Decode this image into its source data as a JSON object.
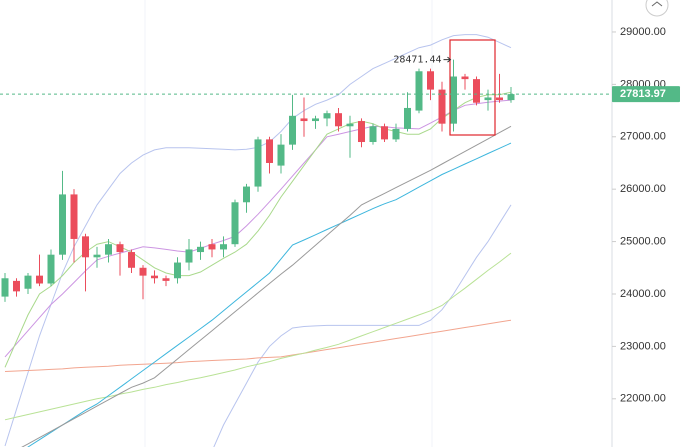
{
  "chart_data": {
    "type": "candlestick",
    "open": [
      23950,
      24250,
      24100,
      24350,
      24200,
      24750,
      25900,
      25100,
      24700,
      24750,
      24950,
      24800,
      24500,
      24350,
      24300,
      24300,
      24600,
      24800,
      24950,
      24850,
      24950,
      25750,
      26050,
      26950,
      26450,
      26850,
      27350,
      27300,
      27350,
      27450,
      27200,
      27300,
      26900,
      27200,
      26950,
      27150,
      27500,
      28250,
      27900,
      27250,
      28150,
      28100,
      27700,
      27750,
      27700
    ],
    "high": [
      24400,
      24300,
      24400,
      24750,
      24850,
      26350,
      26000,
      25150,
      24900,
      25050,
      25000,
      24850,
      24550,
      24450,
      24350,
      24700,
      25050,
      25000,
      25050,
      25100,
      25800,
      26100,
      27000,
      27000,
      27050,
      27800,
      27750,
      27400,
      27500,
      27550,
      27400,
      27350,
      27250,
      27250,
      27250,
      27850,
      28300,
      28300,
      28050,
      28471.44,
      28200,
      28150,
      27900,
      28200,
      27950
    ],
    "low": [
      23850,
      23950,
      24000,
      24150,
      24150,
      24650,
      24600,
      24050,
      24500,
      24600,
      24350,
      24400,
      23900,
      24200,
      24150,
      24200,
      24450,
      24650,
      24700,
      24700,
      24900,
      25550,
      25950,
      26300,
      26300,
      26750,
      27000,
      27150,
      27200,
      27100,
      26600,
      26800,
      26850,
      26900,
      26900,
      27100,
      27450,
      27700,
      27100,
      27100,
      27900,
      27600,
      27500,
      27650,
      27650
    ],
    "close": [
      24300,
      24050,
      24350,
      24200,
      24750,
      25900,
      25050,
      24700,
      24750,
      24950,
      24800,
      24500,
      24350,
      24300,
      24250,
      24600,
      24850,
      24900,
      24850,
      24950,
      25750,
      26050,
      26950,
      26500,
      26850,
      27400,
      27300,
      27350,
      27450,
      27200,
      27250,
      26900,
      27200,
      26950,
      27150,
      27550,
      28250,
      27900,
      27250,
      28150,
      28100,
      27650,
      27750,
      27700,
      27813.97
    ],
    "up_color": "#53b987",
    "down_color": "#eb4d5c",
    "series": [
      {
        "color": "#b8c4ee",
        "values": [
          21100,
          21800,
          22500,
          23200,
          23800,
          24400,
          24900,
          25300,
          25700,
          26000,
          26300,
          26500,
          26650,
          26750,
          26790,
          26790,
          26790,
          26780,
          26770,
          26760,
          26750,
          26760,
          26800,
          26900,
          27100,
          27350,
          27500,
          27620,
          27700,
          27800,
          28000,
          28150,
          28300,
          28400,
          28500,
          28600,
          28700,
          28750,
          28850,
          28930,
          28950,
          28950,
          28900,
          28800,
          28700
        ]
      },
      {
        "color": "#b8c4ee",
        "values": [
          null,
          null,
          null,
          null,
          null,
          null,
          null,
          null,
          null,
          null,
          null,
          null,
          null,
          null,
          null,
          null,
          null,
          null,
          21000,
          21500,
          21900,
          22300,
          22700,
          23000,
          23200,
          23350,
          23380,
          23390,
          23400,
          23400,
          23400,
          23400,
          23400,
          23400,
          23400,
          23400,
          23400,
          23500,
          23700,
          24000,
          24350,
          24700,
          25000,
          25350,
          25700
        ]
      },
      {
        "color": "#f2a58f",
        "values": [
          22520,
          22530,
          22540,
          22550,
          22560,
          22570,
          22590,
          22600,
          22610,
          22620,
          22640,
          22650,
          22660,
          22670,
          22680,
          22690,
          22710,
          22720,
          22730,
          22740,
          22750,
          22760,
          22780,
          22790,
          22800,
          22835,
          22870,
          22905,
          22940,
          22975,
          23010,
          23045,
          23080,
          23115,
          23150,
          23185,
          23220,
          23255,
          23290,
          23325,
          23360,
          23395,
          23430,
          23465,
          23500
        ]
      },
      {
        "color": "#b9e296",
        "values": [
          21600,
          21650,
          21700,
          21750,
          21800,
          21850,
          21900,
          21950,
          22000,
          22040,
          22090,
          22130,
          22180,
          22220,
          22270,
          22310,
          22360,
          22400,
          22450,
          22500,
          22550,
          22610,
          22660,
          22710,
          22770,
          22820,
          22870,
          22930,
          22980,
          23040,
          23120,
          23200,
          23280,
          23360,
          23440,
          23520,
          23600,
          23680,
          23780,
          23950,
          24110,
          24280,
          24450,
          24610,
          24780
        ]
      },
      {
        "color": "#3db6dd",
        "values": [
          20800,
          20940,
          21080,
          21220,
          21360,
          21500,
          21640,
          21780,
          21900,
          22060,
          22220,
          22380,
          22540,
          22700,
          22860,
          23020,
          23180,
          23340,
          23500,
          23680,
          23860,
          24040,
          24220,
          24400,
          24670,
          24935,
          25030,
          25130,
          25230,
          25330,
          25430,
          25530,
          25630,
          25720,
          25800,
          25920,
          26040,
          26160,
          26280,
          26380,
          26480,
          26580,
          26680,
          26780,
          26880
        ]
      },
      {
        "color": "#9a9a9a",
        "values": [
          20900,
          21020,
          21140,
          21260,
          21380,
          21500,
          21620,
          21740,
          21860,
          21980,
          22100,
          22220,
          22300,
          22400,
          22580,
          22760,
          22940,
          23120,
          23300,
          23480,
          23660,
          23840,
          24020,
          24200,
          24380,
          24550,
          24740,
          24930,
          25120,
          25310,
          25500,
          25700,
          25810,
          25920,
          26030,
          26140,
          26250,
          26360,
          26480,
          26600,
          26720,
          26840,
          26960,
          27080,
          27200
        ]
      },
      {
        "color": "#cc95e2",
        "values": [
          22800,
          23050,
          23300,
          23550,
          23800,
          24000,
          24220,
          24440,
          24650,
          24720,
          24780,
          24840,
          24900,
          24880,
          24850,
          24820,
          24800,
          24870,
          24950,
          25020,
          25100,
          25300,
          25520,
          25760,
          26000,
          26250,
          26500,
          26750,
          27000,
          27050,
          27100,
          27150,
          27200,
          27190,
          27170,
          27160,
          27150,
          27260,
          27380,
          27500,
          27600,
          27630,
          27660,
          27680,
          27700
        ]
      },
      {
        "color": "#a9d98c",
        "values": [
          22600,
          23100,
          23600,
          24000,
          24150,
          24350,
          24600,
          24800,
          24950,
          25000,
          24900,
          24800,
          24650,
          24500,
          24400,
          24350,
          24350,
          24420,
          24550,
          24680,
          24800,
          24950,
          25200,
          25500,
          25850,
          26150,
          26450,
          26750,
          27050,
          27150,
          27250,
          27300,
          27250,
          27150,
          27100,
          27050,
          27050,
          27150,
          27350,
          27500,
          27650,
          27750,
          27800,
          27800,
          27850
        ]
      }
    ],
    "ylim": [
      21080,
      29610
    ],
    "yticks": [
      {
        "value": 22000,
        "label": "22000.00"
      },
      {
        "value": 23000,
        "label": "23000.00"
      },
      {
        "value": 24000,
        "label": "24000.00"
      },
      {
        "value": 25000,
        "label": "25000.00"
      },
      {
        "value": 26000,
        "label": "26000.00"
      },
      {
        "value": 27000,
        "label": "27000.00"
      },
      {
        "value": 28000,
        "label": "28000.00"
      },
      {
        "value": 29000,
        "label": "29000.00"
      }
    ],
    "last_price": 27813.97,
    "last_price_label": "27813.97",
    "max_label": "28471.44"
  }
}
